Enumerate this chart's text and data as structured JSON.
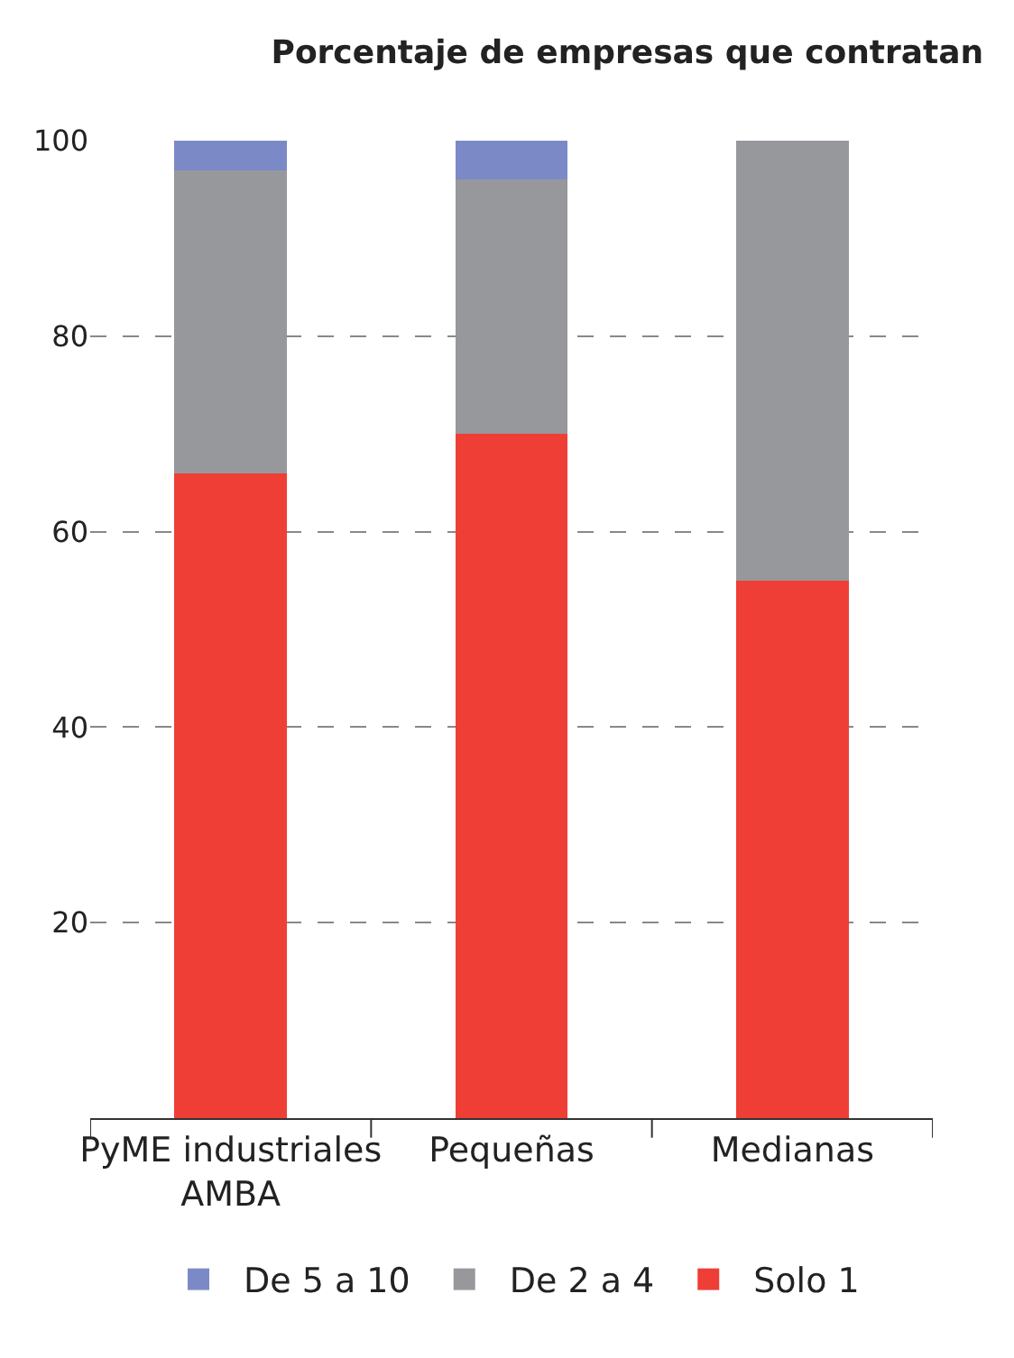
{
  "chart_data": {
    "type": "bar",
    "title": "Porcentaje de empresas que contratan",
    "categories": [
      "PyME industriales AMBA",
      "Pequeñas",
      "Medianas"
    ],
    "stacked": true,
    "series": [
      {
        "name": "Solo 1",
        "color": "#ef3e36",
        "values": [
          66,
          70,
          55
        ]
      },
      {
        "name": "De 2 a 4",
        "color": "#97989c",
        "values": [
          31,
          26,
          45
        ]
      },
      {
        "name": "De 5 a 10",
        "color": "#7b8ac6",
        "values": [
          3,
          4,
          0
        ]
      }
    ],
    "ylim": [
      0,
      100
    ],
    "yticks": [
      20,
      40,
      60,
      80,
      100
    ],
    "grid": "y",
    "legend": "bottom"
  }
}
